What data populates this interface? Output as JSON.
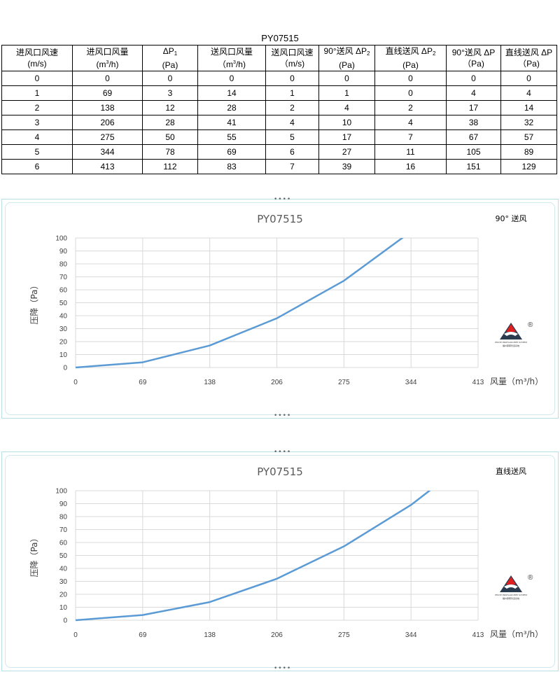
{
  "table": {
    "title": "PY07515",
    "headers": [
      {
        "main": "进风口风速",
        "unit": "(m/s)"
      },
      {
        "main": "进风口风量",
        "unit_pre": "(m",
        "unit_sup": "3",
        "unit_post": "/h)"
      },
      {
        "main_pre": "ΔP",
        "main_sub": "1",
        "unit": "(Pa)"
      },
      {
        "main": "送风口风量",
        "unit_pre": "（m",
        "unit_sup": "3",
        "unit_post": "/h)"
      },
      {
        "main": "送风口风速",
        "unit": "（m/s)"
      },
      {
        "main_pre": "90°送风 ΔP",
        "main_sub": "2",
        "unit": "(Pa)"
      },
      {
        "main_pre": "直线送风 ΔP",
        "main_sub": "2",
        "unit": "(Pa)"
      },
      {
        "main": "90°送风 ΔP",
        "unit": "（Pa)"
      },
      {
        "main": "直线送风 ΔP",
        "unit": "（Pa)"
      }
    ],
    "rows": [
      [
        "0",
        "0",
        "0",
        "0",
        "0",
        "0",
        "0",
        "0",
        "0"
      ],
      [
        "1",
        "69",
        "3",
        "14",
        "1",
        "1",
        "0",
        "4",
        "4"
      ],
      [
        "2",
        "138",
        "12",
        "28",
        "2",
        "4",
        "2",
        "17",
        "14"
      ],
      [
        "3",
        "206",
        "28",
        "41",
        "4",
        "10",
        "4",
        "38",
        "32"
      ],
      [
        "4",
        "275",
        "50",
        "55",
        "5",
        "17",
        "7",
        "67",
        "57"
      ],
      [
        "5",
        "344",
        "78",
        "69",
        "6",
        "27",
        "11",
        "105",
        "89"
      ],
      [
        "6",
        "413",
        "112",
        "83",
        "7",
        "39",
        "16",
        "151",
        "129"
      ]
    ]
  },
  "handle_glyph": "••••",
  "logo": {
    "mark": "®",
    "line1": "PHAYE PROFLAIR PIPE SYSTEM",
    "line2": "福州菲耶管道系统"
  },
  "chart_data": [
    {
      "type": "line",
      "title": "PY07515",
      "legend_label": "90° 送风",
      "xlabel": "风量（m³/h）",
      "ylabel": "压降（Pa）",
      "categories": [
        "0",
        "69",
        "138",
        "206",
        "275",
        "344",
        "413"
      ],
      "series": [
        {
          "values": [
            0,
            4,
            17,
            38,
            67,
            105,
            151
          ]
        }
      ],
      "ylim": [
        0,
        100
      ],
      "yticks": [
        "0",
        "10",
        "20",
        "30",
        "40",
        "50",
        "60",
        "70",
        "80",
        "90",
        "100"
      ],
      "grid": true,
      "line_color": "#5b9bd5"
    },
    {
      "type": "line",
      "title": "PY07515",
      "legend_label": "直线送风",
      "xlabel": "风量（m³/h）",
      "ylabel": "压降（Pa）",
      "categories": [
        "0",
        "69",
        "138",
        "206",
        "275",
        "344",
        "413"
      ],
      "series": [
        {
          "values": [
            0,
            4,
            14,
            32,
            57,
            89,
            129
          ]
        }
      ],
      "ylim": [
        0,
        100
      ],
      "yticks": [
        "0",
        "10",
        "20",
        "30",
        "40",
        "50",
        "60",
        "70",
        "80",
        "90",
        "100"
      ],
      "grid": true,
      "line_color": "#5b9bd5"
    }
  ]
}
